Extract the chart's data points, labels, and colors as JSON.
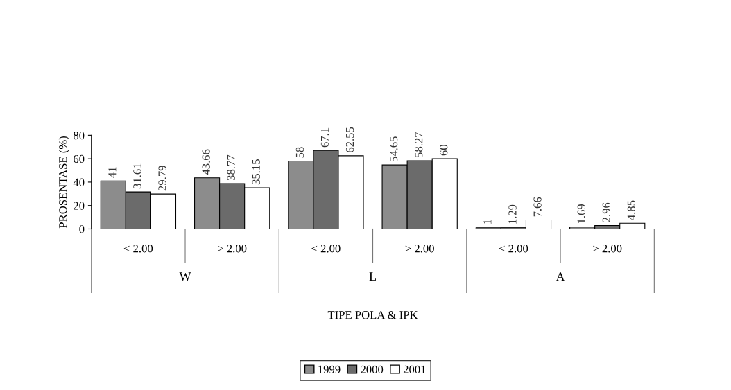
{
  "chart_data": {
    "type": "bar",
    "categories": [
      "< 2.00",
      "> 2.00",
      "< 2.00",
      "> 2.00",
      "< 2.00",
      "> 2.00"
    ],
    "series": [
      {
        "name": "1999",
        "color": "#8c8c8c",
        "values": [
          41,
          43.66,
          58,
          54.65,
          1,
          1.69
        ]
      },
      {
        "name": "2000",
        "color": "#6b6b6b",
        "values": [
          31.61,
          38.77,
          67.1,
          58.27,
          1.29,
          2.96
        ]
      },
      {
        "name": "2001",
        "color": "#ffffff",
        "values": [
          29.79,
          35.15,
          62.55,
          60,
          7.66,
          4.85
        ]
      }
    ],
    "ylabel": "PROSENTASE (%)",
    "ylim": [
      0,
      80
    ],
    "yticks": [
      0,
      20,
      40,
      60,
      80
    ],
    "annotations": [
      "W",
      "L",
      "A",
      "TIPE POLA & IPK"
    ],
    "data_labels": true,
    "legend": "bottom",
    "grid": false
  }
}
